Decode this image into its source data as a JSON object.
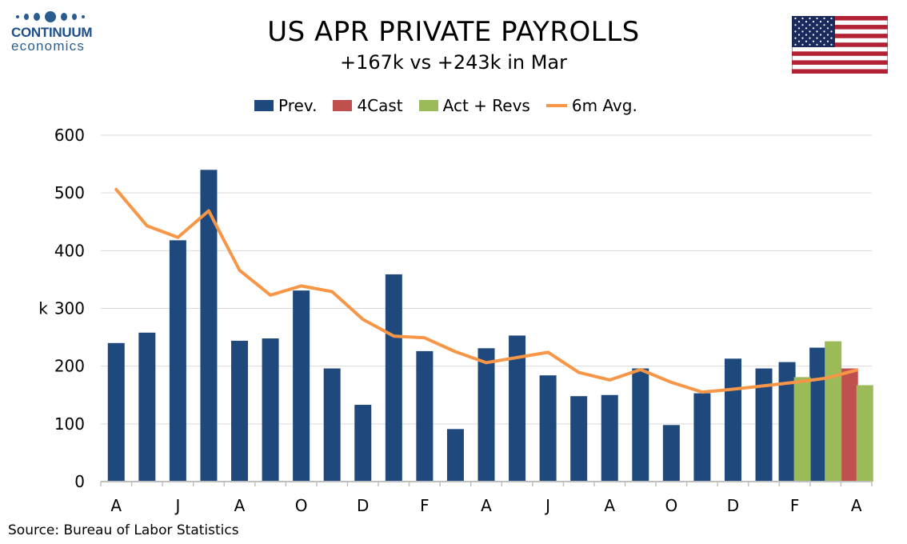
{
  "logo": {
    "line1": "CONTINUUM",
    "line2": "economics"
  },
  "title": "US APR PRIVATE PAYROLLS",
  "subtitle": "+167k vs +243k in Mar",
  "source": "Source: Bureau of Labor Statistics",
  "colors": {
    "prev": "#1f497d",
    "fcast": "#c0504d",
    "act": "#9bbb59",
    "avg": "#f79646",
    "grid": "#d9d9d9",
    "axis": "#bfbfbf"
  },
  "chart_data": {
    "type": "bar",
    "ylabel": "k",
    "ylim": [
      0,
      600
    ],
    "yticks": [
      0,
      100,
      200,
      300,
      400,
      500,
      600
    ],
    "grid": true,
    "legend_position": "top",
    "x_tick_labels": [
      "A",
      "J",
      "A",
      "O",
      "D",
      "F",
      "A",
      "J",
      "A",
      "O",
      "D",
      "F",
      "A"
    ],
    "months": 25,
    "series": [
      {
        "name": "Prev.",
        "kind": "bar",
        "slot": 0,
        "values": [
          240,
          258,
          418,
          540,
          244,
          248,
          331,
          196,
          133,
          359,
          226,
          91,
          231,
          253,
          184,
          148,
          150,
          196,
          98,
          153,
          213,
          196,
          207,
          232,
          null
        ]
      },
      {
        "name": "4Cast",
        "kind": "bar",
        "slot": 0,
        "values": [
          null,
          null,
          null,
          null,
          null,
          null,
          null,
          null,
          null,
          null,
          null,
          null,
          null,
          null,
          null,
          null,
          null,
          null,
          null,
          null,
          null,
          null,
          null,
          null,
          196
        ]
      },
      {
        "name": "Act + Revs",
        "kind": "bar",
        "slot": 1,
        "values": [
          null,
          null,
          null,
          null,
          null,
          null,
          null,
          null,
          null,
          null,
          null,
          null,
          null,
          null,
          null,
          null,
          null,
          null,
          null,
          null,
          null,
          null,
          181,
          243,
          167
        ]
      },
      {
        "name": "6m Avg.",
        "kind": "line",
        "values": [
          506,
          443,
          423,
          469,
          366,
          323,
          339,
          329,
          281,
          252,
          249,
          225,
          206,
          215,
          224,
          189,
          176,
          194,
          172,
          155,
          160,
          166,
          172,
          179,
          193
        ]
      }
    ]
  }
}
